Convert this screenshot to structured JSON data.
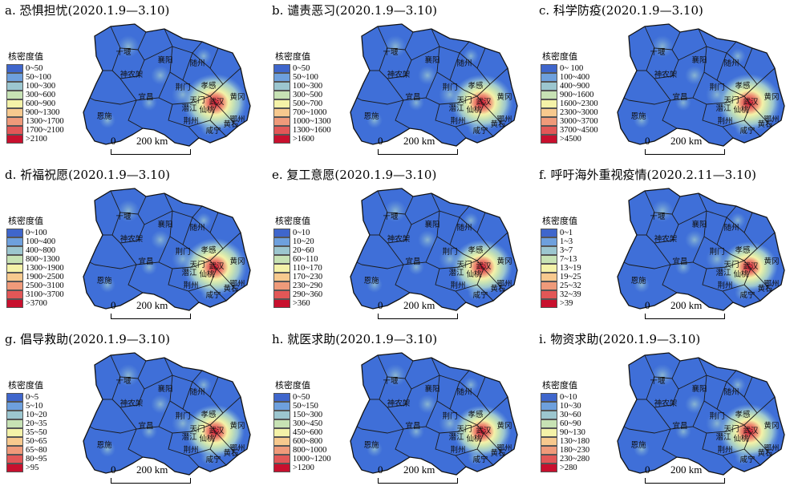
{
  "legend_title": "核密度值",
  "scale": {
    "zero": "0",
    "distance": "200 km"
  },
  "cities": [
    {
      "name": "十堰",
      "key": "shiyan"
    },
    {
      "name": "襄阳",
      "key": "xiangyang"
    },
    {
      "name": "随州",
      "key": "suizhou"
    },
    {
      "name": "神农架",
      "key": "shennongjia"
    },
    {
      "name": "荆门",
      "key": "jingmen"
    },
    {
      "name": "孝感",
      "key": "xiaogan"
    },
    {
      "name": "宜昌",
      "key": "yichang"
    },
    {
      "name": "武汉",
      "key": "wuhan"
    },
    {
      "name": "黄冈",
      "key": "huanggang"
    },
    {
      "name": "天门",
      "key": "tianmen"
    },
    {
      "name": "潜江",
      "key": "qianjiang"
    },
    {
      "name": "仙桃",
      "key": "xiantao"
    },
    {
      "name": "荆州",
      "key": "jingzhou"
    },
    {
      "name": "鄂州",
      "key": "ezhou"
    },
    {
      "name": "黄石",
      "key": "huangshi"
    },
    {
      "name": "恩施",
      "key": "enshi"
    },
    {
      "name": "咸宁",
      "key": "xianning"
    }
  ],
  "colors": {
    "map_base": "#3f6fd8",
    "ramp": [
      "#3f66cc",
      "#6ea0dd",
      "#9cc6cf",
      "#c7e2b4",
      "#f4f2a8",
      "#f7c98e",
      "#ef9a7a",
      "#e25757",
      "#c8102e"
    ]
  },
  "panels": [
    {
      "title": "a. 恐惧担忧(2020.1.9—3.10)",
      "legend": [
        "0~50",
        "50~100",
        "100~300",
        "300~600",
        "600~900",
        "900~1300",
        "1300~1700",
        "1700~2100",
        ">2100"
      ],
      "hotspot_level": 1.0
    },
    {
      "title": "b. 谴责恶习(2020.1.9—3.10)",
      "legend": [
        "0~50",
        "50~100",
        "100~300",
        "300~500",
        "500~700",
        "700~1000",
        "1000~1300",
        "1300~1600",
        ">1600"
      ],
      "hotspot_level": 0.95
    },
    {
      "title": "c. 科学防疫(2020.1.9—3.10)",
      "legend": [
        "0~ 100",
        "100~400",
        "400~900",
        "900~1600",
        "1600~2300",
        "2300~3000",
        "3000~3700",
        "3700~4500",
        ">4500"
      ],
      "hotspot_level": 1.0
    },
    {
      "title": "d. 祈福祝愿(2020.1.9—3.10)",
      "legend": [
        "0~100",
        "100~400",
        "400~800",
        "800~1300",
        "1300~1900",
        "1900~2500",
        "2500~3100",
        "3100~3700",
        ">3700"
      ],
      "hotspot_level": 1.0
    },
    {
      "title": "e. 复工意愿(2020.1.9—3.10)",
      "legend": [
        "0~10",
        "10~20",
        "20~60",
        "60~110",
        "110~170",
        "170~230",
        "230~290",
        "290~360",
        ">360"
      ],
      "hotspot_level": 0.9
    },
    {
      "title": "f. 呼吁海外重视疫情(2020.2.11—3.10)",
      "legend": [
        "0~1",
        "1~3",
        "3~7",
        "7~13",
        "13~19",
        "19~25",
        "25~32",
        "32~39",
        ">39"
      ],
      "hotspot_level": 0.75
    },
    {
      "title": "g. 倡导救助(2020.1.9—3.10)",
      "legend": [
        "0~5",
        "5~10",
        "10~20",
        "20~35",
        "35~50",
        "50~65",
        "65~80",
        "80~95",
        ">95"
      ],
      "hotspot_level": 0.85
    },
    {
      "title": "h. 就医求助(2020.1.9—3.10)",
      "legend": [
        "0~50",
        "50~150",
        "150~300",
        "300~450",
        "450~600",
        "600~800",
        "800~1000",
        "1000~1200",
        ">1200"
      ],
      "hotspot_level": 0.8
    },
    {
      "title": "i. 物资求助(2020.1.9—3.10)",
      "legend": [
        "0~10",
        "10~30",
        "30~60",
        "60~90",
        "90~130",
        "130~180",
        "180~230",
        "230~280",
        ">280"
      ],
      "hotspot_level": 0.9
    }
  ]
}
